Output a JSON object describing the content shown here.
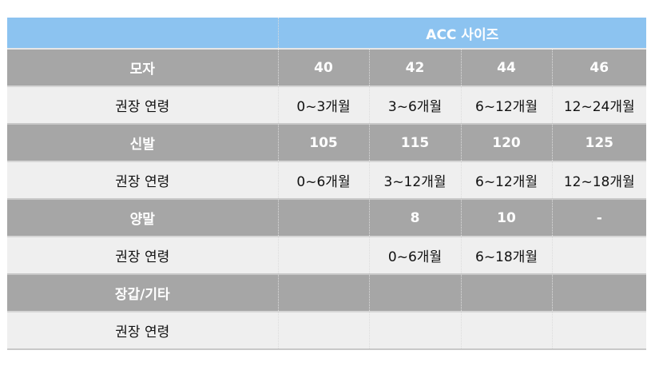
{
  "title": "ACC 사이즈",
  "rows": [
    {
      "type": "gray",
      "label": "모자",
      "cells": [
        "40",
        "42",
        "44",
        "46"
      ]
    },
    {
      "type": "light",
      "label": "권장 연령",
      "cells": [
        "0~3개월",
        "3~6개월",
        "6~12개월",
        "12~24개월"
      ]
    },
    {
      "type": "gray",
      "label": "신발",
      "cells": [
        "105",
        "115",
        "120",
        "125"
      ]
    },
    {
      "type": "light",
      "label": "권장 연령",
      "cells": [
        "0~6개월",
        "3~12개월",
        "6~12개월",
        "12~18개월"
      ]
    },
    {
      "type": "gray",
      "label": "양말",
      "cells": [
        "",
        "8",
        "10",
        "-"
      ]
    },
    {
      "type": "light",
      "label": "권장 연령",
      "cells": [
        "",
        "0~6개월",
        "6~18개월",
        ""
      ]
    },
    {
      "type": "gray",
      "label": "장갑/기타",
      "cells": [
        "",
        "",
        "",
        ""
      ]
    },
    {
      "type": "light",
      "label": "권장 연령",
      "cells": [
        "",
        "",
        "",
        ""
      ]
    }
  ],
  "colors": {
    "header": "#8cc3f0",
    "gray_row": "#a6a6a6",
    "light_row": "#efefef"
  }
}
